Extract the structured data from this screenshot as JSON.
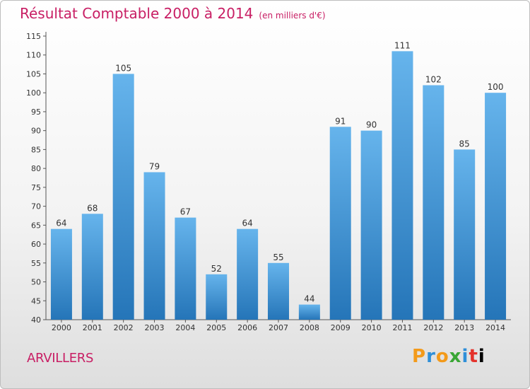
{
  "title": "Résultat Comptable 2000 à 2014",
  "subtitle": "(en milliers d'€)",
  "town": "ARVILLERS",
  "logo": [
    "P",
    "r",
    "o",
    "x",
    "i",
    "t",
    "i"
  ],
  "colors": {
    "title": "#c81e64",
    "bar_top": "#66b4ec",
    "bar_bottom": "#2575b8"
  },
  "chart_data": {
    "type": "bar",
    "categories": [
      "2000",
      "2001",
      "2002",
      "2003",
      "2004",
      "2005",
      "2006",
      "2007",
      "2008",
      "2009",
      "2010",
      "2011",
      "2012",
      "2013",
      "2014"
    ],
    "values": [
      64,
      68,
      105,
      79,
      67,
      52,
      64,
      55,
      44,
      91,
      90,
      111,
      102,
      85,
      100
    ],
    "title": "Résultat Comptable 2000 à 2014",
    "xlabel": "",
    "ylabel": "",
    "ylim": [
      40,
      115
    ],
    "yticks": [
      40,
      45,
      50,
      55,
      60,
      65,
      70,
      75,
      80,
      85,
      90,
      95,
      100,
      105,
      110,
      115
    ],
    "grid": false,
    "legend": "none"
  }
}
